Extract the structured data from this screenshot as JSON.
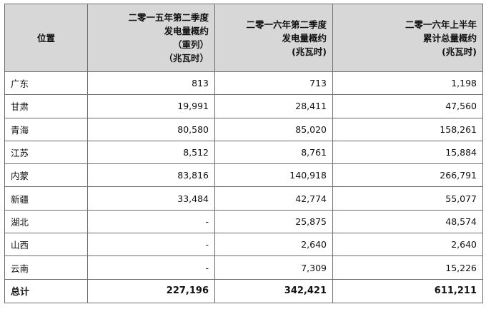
{
  "header": {
    "location": "位置",
    "col1": [
      "二零一五年第二季度",
      "发电量概约",
      "（重列）",
      "（兆瓦时）"
    ],
    "col2": [
      "二零一六年第二季度",
      "发电量概约",
      "(兆瓦时)"
    ],
    "col3": [
      "二零一六年上半年",
      "累计总量概约",
      "(兆瓦时)"
    ]
  },
  "rows": [
    {
      "name": "广东",
      "q2_2015": "813",
      "q2_2016": "713",
      "h1_2016": "1,198"
    },
    {
      "name": "甘肃",
      "q2_2015": "19,991",
      "q2_2016": "28,411",
      "h1_2016": "47,560"
    },
    {
      "name": "青海",
      "q2_2015": "80,580",
      "q2_2016": "85,020",
      "h1_2016": "158,261"
    },
    {
      "name": "江苏",
      "q2_2015": "8,512",
      "q2_2016": "8,761",
      "h1_2016": "15,884"
    },
    {
      "name": "内蒙",
      "q2_2015": "83,816",
      "q2_2016": "140,918",
      "h1_2016": "266,791"
    },
    {
      "name": "新疆",
      "q2_2015": "33,484",
      "q2_2016": "42,774",
      "h1_2016": "55,077"
    },
    {
      "name": "湖北",
      "q2_2015": "-",
      "q2_2016": "25,875",
      "h1_2016": "48,574"
    },
    {
      "name": "山西",
      "q2_2015": "-",
      "q2_2016": "2,640",
      "h1_2016": "2,640"
    },
    {
      "name": "云南",
      "q2_2015": "-",
      "q2_2016": "7,309",
      "h1_2016": "15,226"
    }
  ],
  "total": {
    "name": "总计",
    "q2_2015": "227,196",
    "q2_2016": "342,421",
    "h1_2016": "611,211"
  }
}
